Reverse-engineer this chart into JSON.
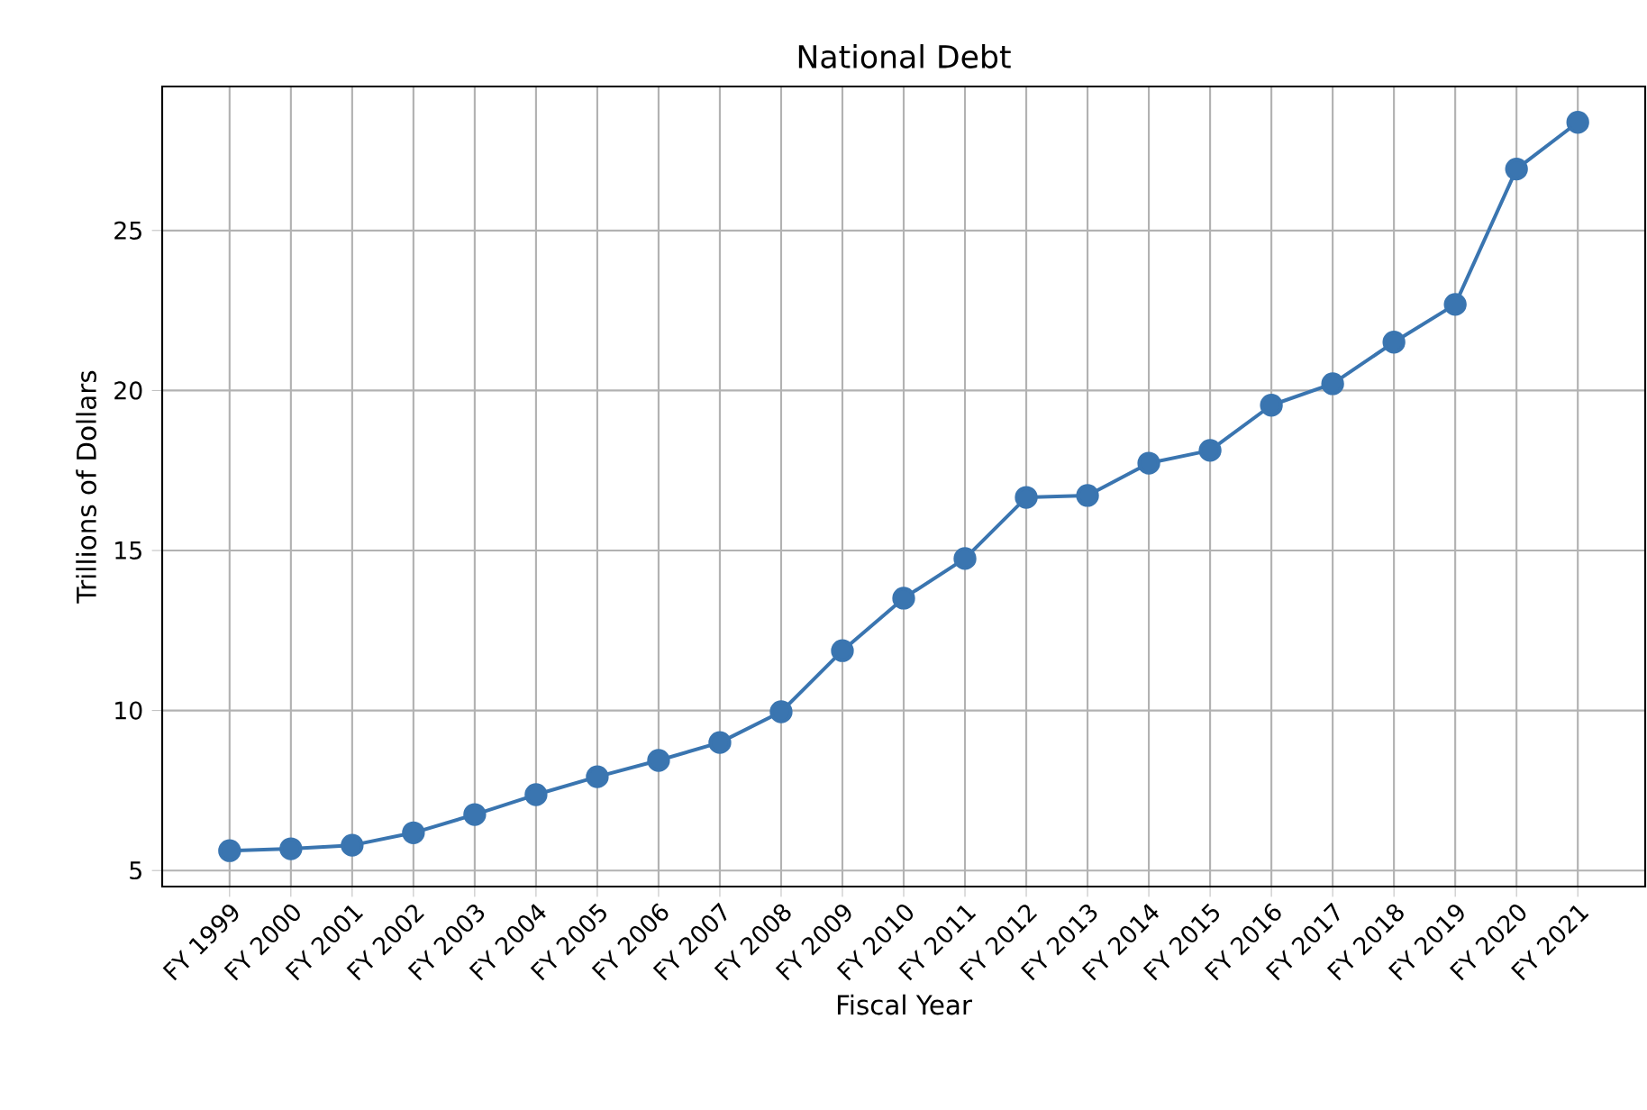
{
  "chart_data": {
    "type": "line",
    "title": "National Debt",
    "xlabel": "Fiscal Year",
    "ylabel": "Trillions of Dollars",
    "categories": [
      "FY 1999",
      "FY 2000",
      "FY 2001",
      "FY 2002",
      "FY 2003",
      "FY 2004",
      "FY 2005",
      "FY 2006",
      "FY 2007",
      "FY 2008",
      "FY 2009",
      "FY 2010",
      "FY 2011",
      "FY 2012",
      "FY 2013",
      "FY 2014",
      "FY 2015",
      "FY 2016",
      "FY 2017",
      "FY 2018",
      "FY 2019",
      "FY 2020",
      "FY 2021"
    ],
    "series": [
      {
        "color": "#3a75b0",
        "values": [
          5.62,
          5.68,
          5.79,
          6.18,
          6.75,
          7.37,
          7.93,
          8.44,
          9.0,
          9.96,
          11.87,
          13.51,
          14.75,
          16.66,
          16.72,
          17.73,
          18.13,
          19.54,
          20.21,
          21.51,
          22.69,
          26.92,
          28.38
        ]
      }
    ],
    "ylim": [
      4.5,
      29.5
    ],
    "yticks": [
      5,
      10,
      15,
      20,
      25
    ],
    "grid": true,
    "marker": "circle",
    "line_style": "solid"
  }
}
